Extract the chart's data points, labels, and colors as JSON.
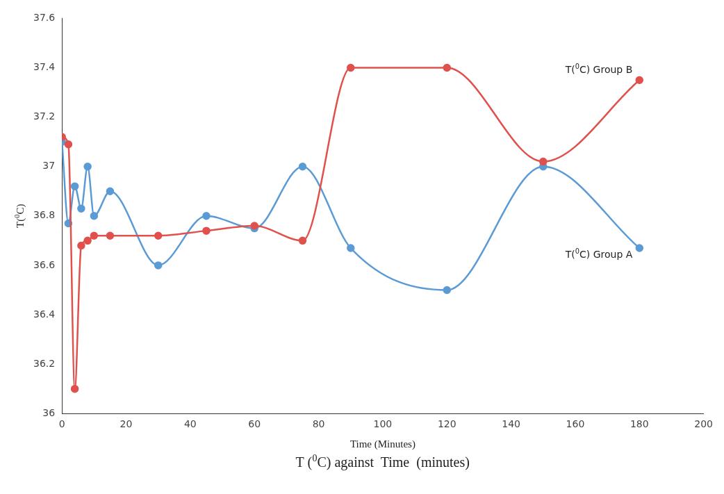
{
  "chart_data": {
    "type": "line",
    "title": "T ($^{0}$C) against  Time  (minutes)",
    "xlabel": "Time (Minutes)",
    "ylabel": "T($^{0}$C)",
    "x": [
      0,
      2,
      4,
      6,
      8,
      10,
      15,
      30,
      45,
      60,
      75,
      90,
      120,
      150,
      180
    ],
    "series": [
      {
        "name": "T($^{0}$C) Group A",
        "color": "#5b9bd5",
        "values": [
          37.1,
          36.77,
          36.92,
          36.83,
          37.0,
          36.8,
          36.9,
          36.6,
          36.8,
          36.75,
          37.0,
          36.67,
          36.5,
          37.0,
          36.67
        ]
      },
      {
        "name": "T($^{0}$C) Group B",
        "color": "#e0504c",
        "values": [
          37.12,
          37.09,
          36.1,
          36.68,
          36.7,
          36.72,
          36.72,
          36.72,
          36.74,
          36.76,
          36.7,
          37.4,
          37.4,
          37.02,
          37.35
        ]
      }
    ],
    "xlim": [
      0,
      200
    ],
    "xticks": [
      0,
      20,
      40,
      60,
      80,
      100,
      120,
      140,
      160,
      180,
      200
    ],
    "ylim": [
      36,
      37.6
    ],
    "yticks": [
      36,
      36.2,
      36.4,
      36.6,
      36.8,
      37,
      37.2,
      37.4,
      37.6
    ],
    "grid": false,
    "legend": false,
    "marker": "circle",
    "line_style": "solid"
  }
}
